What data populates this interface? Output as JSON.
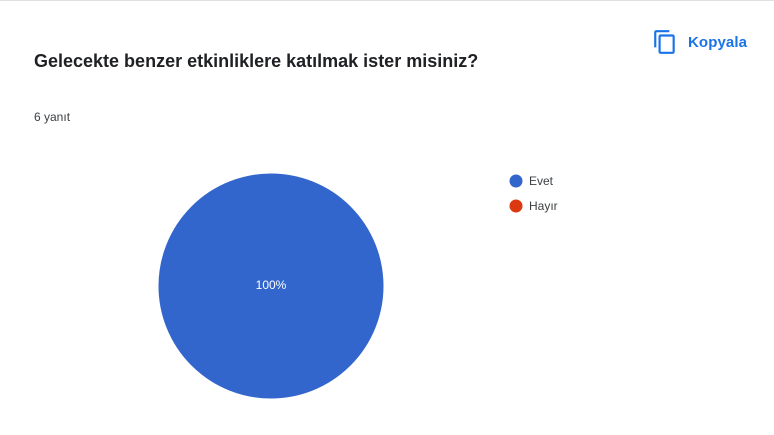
{
  "header": {
    "copy_label": "Kopyala",
    "copy_icon": "copy-icon"
  },
  "question": {
    "title": "Gelecekte benzer etkinliklere katılmak ister misiniz?",
    "response_count": "6 yanıt"
  },
  "colors": {
    "accent": "#1a73e8",
    "evet": "#3366cc",
    "hayir": "#dc3912"
  },
  "chart_data": {
    "type": "pie",
    "categories": [
      "Evet",
      "Hayır"
    ],
    "values": [
      100,
      0
    ],
    "value_labels": [
      "100%",
      ""
    ],
    "unit": "%",
    "legend_position": "right"
  }
}
